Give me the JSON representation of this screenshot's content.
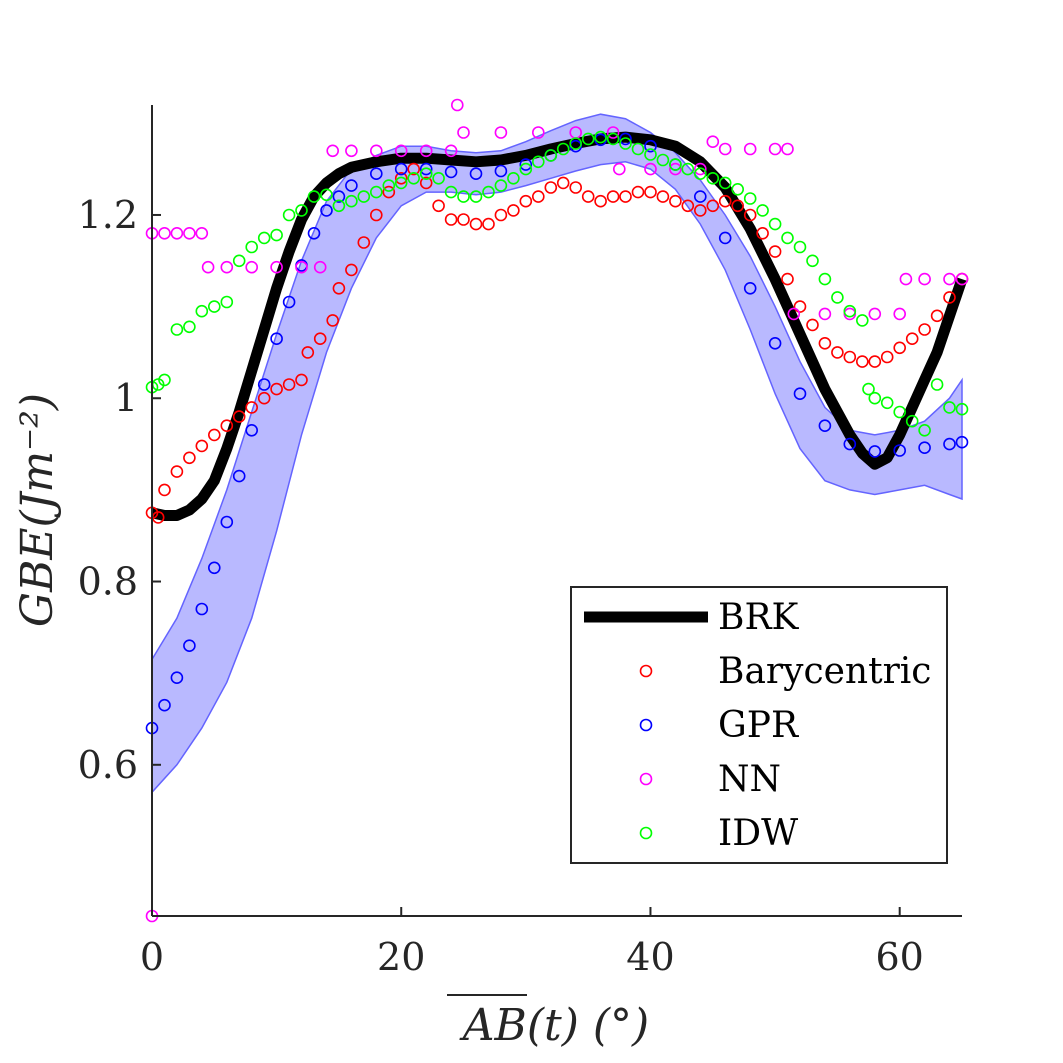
{
  "chart_data": {
    "type": "scatter",
    "xlabel": "AB(t) (°)",
    "ylabel": "GBE(Jm⁻²)",
    "xlim": [
      0,
      65
    ],
    "ylim": [
      0.435,
      1.32
    ],
    "xticks": [
      0,
      20,
      40,
      60
    ],
    "yticks": [
      0.6,
      0.8,
      1,
      1.2
    ],
    "xtick_labels": [
      "0",
      "20",
      "40",
      "60"
    ],
    "ytick_labels": [
      "0.6",
      "0.8",
      "1",
      "1.2"
    ],
    "grid": false,
    "legend_position": "bottom-right",
    "series": [
      {
        "name": "BRK",
        "style": "line",
        "color": "#000000",
        "points": [
          [
            0,
            0.875
          ],
          [
            1,
            0.872
          ],
          [
            2,
            0.872
          ],
          [
            3,
            0.878
          ],
          [
            4,
            0.89
          ],
          [
            5,
            0.91
          ],
          [
            6,
            0.945
          ],
          [
            7,
            0.985
          ],
          [
            8,
            1.03
          ],
          [
            9,
            1.075
          ],
          [
            10,
            1.12
          ],
          [
            11,
            1.16
          ],
          [
            12,
            1.195
          ],
          [
            13,
            1.22
          ],
          [
            14,
            1.235
          ],
          [
            15,
            1.245
          ],
          [
            16,
            1.252
          ],
          [
            18,
            1.258
          ],
          [
            20,
            1.262
          ],
          [
            22,
            1.262
          ],
          [
            24,
            1.26
          ],
          [
            26,
            1.258
          ],
          [
            28,
            1.26
          ],
          [
            30,
            1.265
          ],
          [
            32,
            1.272
          ],
          [
            34,
            1.278
          ],
          [
            36,
            1.283
          ],
          [
            38,
            1.285
          ],
          [
            40,
            1.282
          ],
          [
            42,
            1.275
          ],
          [
            44,
            1.258
          ],
          [
            46,
            1.23
          ],
          [
            48,
            1.185
          ],
          [
            50,
            1.13
          ],
          [
            52,
            1.07
          ],
          [
            54,
            1.01
          ],
          [
            56,
            0.96
          ],
          [
            57,
            0.94
          ],
          [
            58,
            0.928
          ],
          [
            59,
            0.935
          ],
          [
            60,
            0.96
          ],
          [
            61,
            0.99
          ],
          [
            62,
            1.02
          ],
          [
            63,
            1.05
          ],
          [
            64,
            1.09
          ],
          [
            65,
            1.13
          ]
        ]
      },
      {
        "name": "Barycentric",
        "style": "markers",
        "color": "#ff0000",
        "points": [
          [
            0,
            0.875
          ],
          [
            0.5,
            0.87
          ],
          [
            1,
            0.9
          ],
          [
            2,
            0.92
          ],
          [
            3,
            0.935
          ],
          [
            4,
            0.948
          ],
          [
            5,
            0.96
          ],
          [
            6,
            0.97
          ],
          [
            7,
            0.98
          ],
          [
            8,
            0.99
          ],
          [
            9,
            1.0
          ],
          [
            10,
            1.01
          ],
          [
            11,
            1.015
          ],
          [
            12,
            1.02
          ],
          [
            12.5,
            1.05
          ],
          [
            13.5,
            1.065
          ],
          [
            14.5,
            1.085
          ],
          [
            15,
            1.12
          ],
          [
            16,
            1.14
          ],
          [
            17,
            1.17
          ],
          [
            18,
            1.2
          ],
          [
            19,
            1.225
          ],
          [
            20,
            1.24
          ],
          [
            21,
            1.25
          ],
          [
            22,
            1.235
          ],
          [
            23,
            1.21
          ],
          [
            24,
            1.195
          ],
          [
            25,
            1.195
          ],
          [
            26,
            1.19
          ],
          [
            27,
            1.19
          ],
          [
            28,
            1.2
          ],
          [
            29,
            1.205
          ],
          [
            30,
            1.215
          ],
          [
            31,
            1.22
          ],
          [
            32,
            1.23
          ],
          [
            33,
            1.235
          ],
          [
            34,
            1.23
          ],
          [
            35,
            1.22
          ],
          [
            36,
            1.215
          ],
          [
            37,
            1.22
          ],
          [
            38,
            1.22
          ],
          [
            39,
            1.225
          ],
          [
            40,
            1.225
          ],
          [
            41,
            1.22
          ],
          [
            42,
            1.215
          ],
          [
            43,
            1.21
          ],
          [
            44,
            1.205
          ],
          [
            45,
            1.21
          ],
          [
            46,
            1.215
          ],
          [
            47,
            1.21
          ],
          [
            48,
            1.2
          ],
          [
            49,
            1.18
          ],
          [
            50,
            1.16
          ],
          [
            51,
            1.13
          ],
          [
            52,
            1.1
          ],
          [
            53,
            1.08
          ],
          [
            54,
            1.06
          ],
          [
            55,
            1.05
          ],
          [
            56,
            1.045
          ],
          [
            57,
            1.04
          ],
          [
            58,
            1.04
          ],
          [
            59,
            1.045
          ],
          [
            60,
            1.055
          ],
          [
            61,
            1.065
          ],
          [
            62,
            1.075
          ],
          [
            63,
            1.09
          ],
          [
            64,
            1.11
          ],
          [
            65,
            1.13
          ]
        ]
      },
      {
        "name": "GPR",
        "style": "markers",
        "color": "#0000ff",
        "points": [
          [
            0,
            0.64
          ],
          [
            1,
            0.665
          ],
          [
            2,
            0.695
          ],
          [
            3,
            0.73
          ],
          [
            4,
            0.77
          ],
          [
            5,
            0.815
          ],
          [
            6,
            0.865
          ],
          [
            7,
            0.915
          ],
          [
            8,
            0.965
          ],
          [
            9,
            1.015
          ],
          [
            10,
            1.065
          ],
          [
            11,
            1.105
          ],
          [
            12,
            1.145
          ],
          [
            13,
            1.18
          ],
          [
            14,
            1.205
          ],
          [
            15,
            1.22
          ],
          [
            16,
            1.232
          ],
          [
            18,
            1.245
          ],
          [
            20,
            1.25
          ],
          [
            22,
            1.25
          ],
          [
            24,
            1.247
          ],
          [
            26,
            1.245
          ],
          [
            28,
            1.248
          ],
          [
            30,
            1.255
          ],
          [
            32,
            1.265
          ],
          [
            34,
            1.275
          ],
          [
            36,
            1.282
          ],
          [
            38,
            1.283
          ],
          [
            40,
            1.275
          ],
          [
            42,
            1.255
          ],
          [
            44,
            1.22
          ],
          [
            46,
            1.175
          ],
          [
            48,
            1.12
          ],
          [
            50,
            1.06
          ],
          [
            52,
            1.005
          ],
          [
            54,
            0.97
          ],
          [
            56,
            0.95
          ],
          [
            58,
            0.942
          ],
          [
            60,
            0.943
          ],
          [
            62,
            0.946
          ],
          [
            64,
            0.95
          ],
          [
            65,
            0.952
          ]
        ]
      },
      {
        "name": "NN",
        "style": "markers",
        "color": "#ff00ff",
        "points": [
          [
            0,
            0.435
          ],
          [
            0,
            1.18
          ],
          [
            1,
            1.18
          ],
          [
            2,
            1.18
          ],
          [
            3,
            1.18
          ],
          [
            4,
            1.18
          ],
          [
            4.5,
            1.143
          ],
          [
            6,
            1.143
          ],
          [
            8,
            1.143
          ],
          [
            10,
            1.143
          ],
          [
            12,
            1.143
          ],
          [
            13.5,
            1.143
          ],
          [
            14.5,
            1.27
          ],
          [
            16,
            1.27
          ],
          [
            18,
            1.27
          ],
          [
            20,
            1.27
          ],
          [
            22,
            1.27
          ],
          [
            24,
            1.27
          ],
          [
            24.5,
            1.32
          ],
          [
            25,
            1.29
          ],
          [
            28,
            1.29
          ],
          [
            31,
            1.29
          ],
          [
            34,
            1.29
          ],
          [
            37,
            1.29
          ],
          [
            37.5,
            1.25
          ],
          [
            40,
            1.25
          ],
          [
            42,
            1.25
          ],
          [
            44,
            1.25
          ],
          [
            45,
            1.28
          ],
          [
            46,
            1.272
          ],
          [
            48,
            1.272
          ],
          [
            50,
            1.272
          ],
          [
            51,
            1.272
          ],
          [
            51.5,
            1.092
          ],
          [
            54,
            1.092
          ],
          [
            56,
            1.092
          ],
          [
            58,
            1.092
          ],
          [
            60,
            1.092
          ],
          [
            60.5,
            1.13
          ],
          [
            62,
            1.13
          ],
          [
            64,
            1.13
          ],
          [
            65,
            1.13
          ]
        ]
      },
      {
        "name": "IDW",
        "style": "markers",
        "color": "#00ff00",
        "points": [
          [
            0,
            1.012
          ],
          [
            0.5,
            1.015
          ],
          [
            1,
            1.02
          ],
          [
            2,
            1.075
          ],
          [
            3,
            1.078
          ],
          [
            4,
            1.095
          ],
          [
            5,
            1.1
          ],
          [
            6,
            1.105
          ],
          [
            7,
            1.15
          ],
          [
            8,
            1.165
          ],
          [
            9,
            1.175
          ],
          [
            10,
            1.178
          ],
          [
            11,
            1.2
          ],
          [
            12,
            1.205
          ],
          [
            13,
            1.22
          ],
          [
            14,
            1.222
          ],
          [
            15,
            1.21
          ],
          [
            16,
            1.215
          ],
          [
            17,
            1.22
          ],
          [
            18,
            1.225
          ],
          [
            19,
            1.232
          ],
          [
            20,
            1.235
          ],
          [
            21,
            1.24
          ],
          [
            22,
            1.245
          ],
          [
            23,
            1.24
          ],
          [
            24,
            1.225
          ],
          [
            25,
            1.22
          ],
          [
            26,
            1.22
          ],
          [
            27,
            1.225
          ],
          [
            28,
            1.232
          ],
          [
            29,
            1.24
          ],
          [
            30,
            1.25
          ],
          [
            31,
            1.258
          ],
          [
            32,
            1.265
          ],
          [
            33,
            1.272
          ],
          [
            34,
            1.278
          ],
          [
            35,
            1.283
          ],
          [
            36,
            1.285
          ],
          [
            37,
            1.283
          ],
          [
            38,
            1.278
          ],
          [
            39,
            1.272
          ],
          [
            40,
            1.266
          ],
          [
            41,
            1.26
          ],
          [
            42,
            1.255
          ],
          [
            43,
            1.25
          ],
          [
            44,
            1.245
          ],
          [
            45,
            1.24
          ],
          [
            46,
            1.235
          ],
          [
            47,
            1.228
          ],
          [
            48,
            1.218
          ],
          [
            49,
            1.205
          ],
          [
            50,
            1.19
          ],
          [
            51,
            1.175
          ],
          [
            52,
            1.165
          ],
          [
            53,
            1.15
          ],
          [
            54,
            1.13
          ],
          [
            55,
            1.11
          ],
          [
            56,
            1.095
          ],
          [
            57,
            1.085
          ],
          [
            57.5,
            1.01
          ],
          [
            58,
            1.0
          ],
          [
            59,
            0.995
          ],
          [
            60,
            0.985
          ],
          [
            61,
            0.975
          ],
          [
            62,
            0.965
          ],
          [
            63,
            1.015
          ],
          [
            64,
            0.99
          ],
          [
            65,
            0.988
          ]
        ]
      }
    ],
    "gpr_band": {
      "color": "#6464ff",
      "x": [
        0,
        2,
        4,
        6,
        8,
        10,
        12,
        14,
        16,
        18,
        20,
        22,
        24,
        26,
        28,
        30,
        32,
        34,
        36,
        38,
        40,
        42,
        44,
        46,
        48,
        50,
        52,
        54,
        56,
        58,
        60,
        62,
        64,
        65
      ],
      "upper": [
        0.715,
        0.76,
        0.825,
        0.9,
        0.985,
        1.07,
        1.15,
        1.215,
        1.25,
        1.265,
        1.275,
        1.275,
        1.27,
        1.268,
        1.27,
        1.28,
        1.292,
        1.303,
        1.31,
        1.305,
        1.29,
        1.268,
        1.238,
        1.2,
        1.155,
        1.1,
        1.04,
        0.99,
        0.965,
        0.96,
        0.965,
        0.975,
        1.0,
        1.02
      ],
      "lower": [
        0.57,
        0.6,
        0.64,
        0.69,
        0.76,
        0.855,
        0.96,
        1.05,
        1.12,
        1.175,
        1.21,
        1.225,
        1.225,
        1.222,
        1.225,
        1.232,
        1.24,
        1.248,
        1.255,
        1.258,
        1.25,
        1.228,
        1.19,
        1.14,
        1.075,
        1.005,
        0.945,
        0.91,
        0.9,
        0.895,
        0.9,
        0.905,
        0.895,
        0.89
      ]
    }
  }
}
